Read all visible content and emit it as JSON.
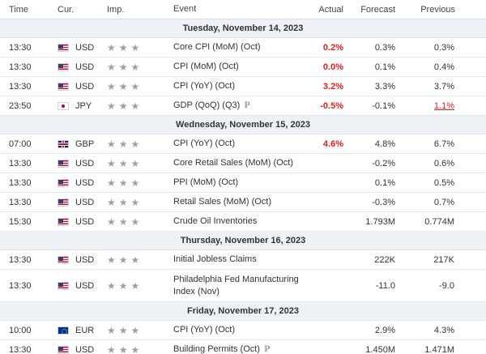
{
  "header": {
    "time": "Time",
    "currency": "Cur.",
    "importance": "Imp.",
    "event": "Event",
    "actual": "Actual",
    "forecast": "Forecast",
    "previous": "Previous"
  },
  "colors": {
    "highlight_red": "#e31d1d",
    "day_bg": "#eef2f7",
    "star": "#9aa1a8"
  },
  "importance_icon": "star-icon",
  "preliminary_icon": "preliminary-p-icon",
  "days": [
    {
      "label": "Tuesday, November 14, 2023",
      "rows": [
        {
          "time": "13:30",
          "currency": "USD",
          "flag": "usd",
          "event": "Core CPI (MoM) (Oct)",
          "actual": "0.2%",
          "forecast": "0.3%",
          "previous": "0.3%",
          "actual_style": "red",
          "previous_style": ""
        },
        {
          "time": "13:30",
          "currency": "USD",
          "flag": "usd",
          "event": "CPI (MoM) (Oct)",
          "actual": "0.0%",
          "forecast": "0.1%",
          "previous": "0.4%",
          "actual_style": "red",
          "previous_style": ""
        },
        {
          "time": "13:30",
          "currency": "USD",
          "flag": "usd",
          "event": "CPI (YoY) (Oct)",
          "actual": "3.2%",
          "forecast": "3.3%",
          "previous": "3.7%",
          "actual_style": "red",
          "previous_style": ""
        },
        {
          "time": "23:50",
          "currency": "JPY",
          "flag": "jpy",
          "event": "GDP (QoQ) (Q3)",
          "actual": "-0.5%",
          "forecast": "-0.1%",
          "previous": "1.1%",
          "actual_style": "red",
          "previous_style": "red-u",
          "preliminary": "P"
        }
      ]
    },
    {
      "label": "Wednesday, November 15, 2023",
      "rows": [
        {
          "time": "07:00",
          "currency": "GBP",
          "flag": "gbp",
          "event": "CPI (YoY) (Oct)",
          "actual": "4.6%",
          "forecast": "4.8%",
          "previous": "6.7%",
          "actual_style": "red",
          "previous_style": ""
        },
        {
          "time": "13:30",
          "currency": "USD",
          "flag": "usd",
          "event": "Core Retail Sales (MoM) (Oct)",
          "actual": "",
          "forecast": "-0.2%",
          "previous": "0.6%",
          "actual_style": "",
          "previous_style": ""
        },
        {
          "time": "13:30",
          "currency": "USD",
          "flag": "usd",
          "event": "PPI (MoM) (Oct)",
          "actual": "",
          "forecast": "0.1%",
          "previous": "0.5%",
          "actual_style": "",
          "previous_style": ""
        },
        {
          "time": "13:30",
          "currency": "USD",
          "flag": "usd",
          "event": "Retail Sales (MoM) (Oct)",
          "actual": "",
          "forecast": "-0.3%",
          "previous": "0.7%",
          "actual_style": "",
          "previous_style": ""
        },
        {
          "time": "15:30",
          "currency": "USD",
          "flag": "usd",
          "event": "Crude Oil Inventories",
          "actual": "",
          "forecast": "1.793M",
          "previous": "0.774M",
          "actual_style": "",
          "previous_style": ""
        }
      ]
    },
    {
      "label": "Thursday, November 16, 2023",
      "rows": [
        {
          "time": "13:30",
          "currency": "USD",
          "flag": "usd",
          "event": "Initial Jobless Claims",
          "actual": "",
          "forecast": "222K",
          "previous": "217K",
          "actual_style": "",
          "previous_style": ""
        },
        {
          "time": "13:30",
          "currency": "USD",
          "flag": "usd",
          "event": "Philadelphia Fed Manufacturing Index (Nov)",
          "actual": "",
          "forecast": "-11.0",
          "previous": "-9.0",
          "actual_style": "",
          "previous_style": "",
          "tall": true
        }
      ]
    },
    {
      "label": "Friday, November 17, 2023",
      "rows": [
        {
          "time": "10:00",
          "currency": "EUR",
          "flag": "eur",
          "event": "CPI (YoY) (Oct)",
          "actual": "",
          "forecast": "2.9%",
          "previous": "4.3%",
          "actual_style": "",
          "previous_style": ""
        },
        {
          "time": "13:30",
          "currency": "USD",
          "flag": "usd",
          "event": "Building Permits (Oct)",
          "actual": "",
          "forecast": "1.450M",
          "previous": "1.471M",
          "actual_style": "",
          "previous_style": "",
          "preliminary": "P"
        }
      ]
    }
  ]
}
